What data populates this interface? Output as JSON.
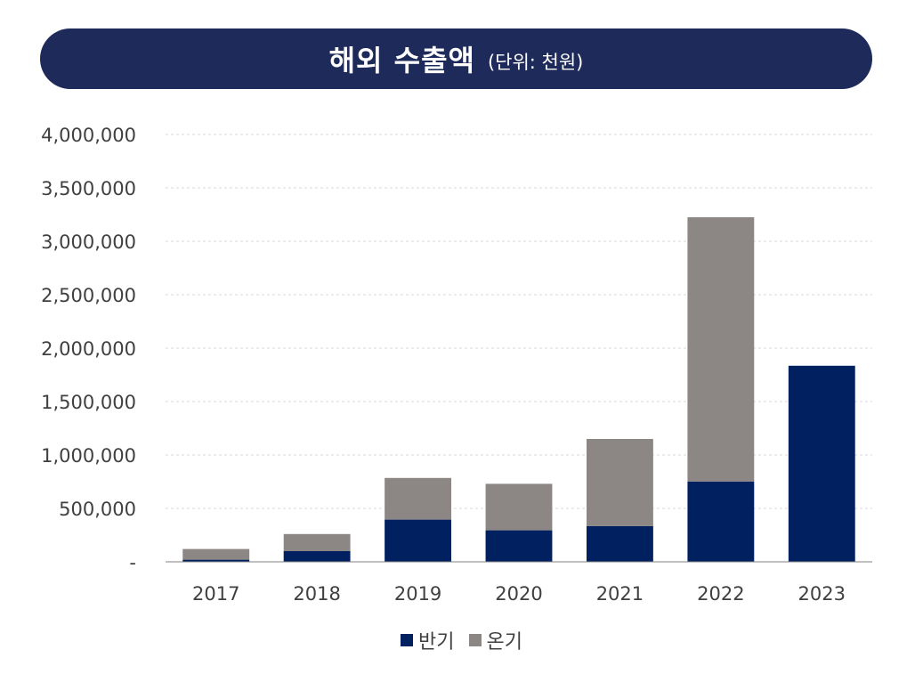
{
  "header": {
    "title": "해외 수출액",
    "unit": "(단위: 천원)"
  },
  "colors": {
    "banner": "#1e2a5a",
    "series_1": "#002060",
    "series_2": "#8c8685",
    "grid": "#d9d9d9",
    "axis": "#808080"
  },
  "chart_data": {
    "type": "bar",
    "stacked": true,
    "categories": [
      "2017",
      "2018",
      "2019",
      "2020",
      "2021",
      "2022",
      "2023"
    ],
    "series": [
      {
        "name": "반기",
        "color": "#002060",
        "values": [
          20000,
          100000,
          395000,
          295000,
          335000,
          752000,
          1835000
        ]
      },
      {
        "name": "온기",
        "color": "#8c8685",
        "values": [
          100000,
          160000,
          390000,
          435000,
          815000,
          2473000,
          0
        ]
      }
    ],
    "ylim": [
      0,
      4000000
    ],
    "yticks": [
      0,
      500000,
      1000000,
      1500000,
      2000000,
      2500000,
      3000000,
      3500000,
      4000000
    ],
    "ytick_labels": [
      "-",
      "500,000",
      "1,000,000",
      "1,500,000",
      "2,000,000",
      "2,500,000",
      "3,000,000",
      "3,500,000",
      "4,000,000"
    ],
    "grid": true,
    "legend_position": "bottom"
  }
}
